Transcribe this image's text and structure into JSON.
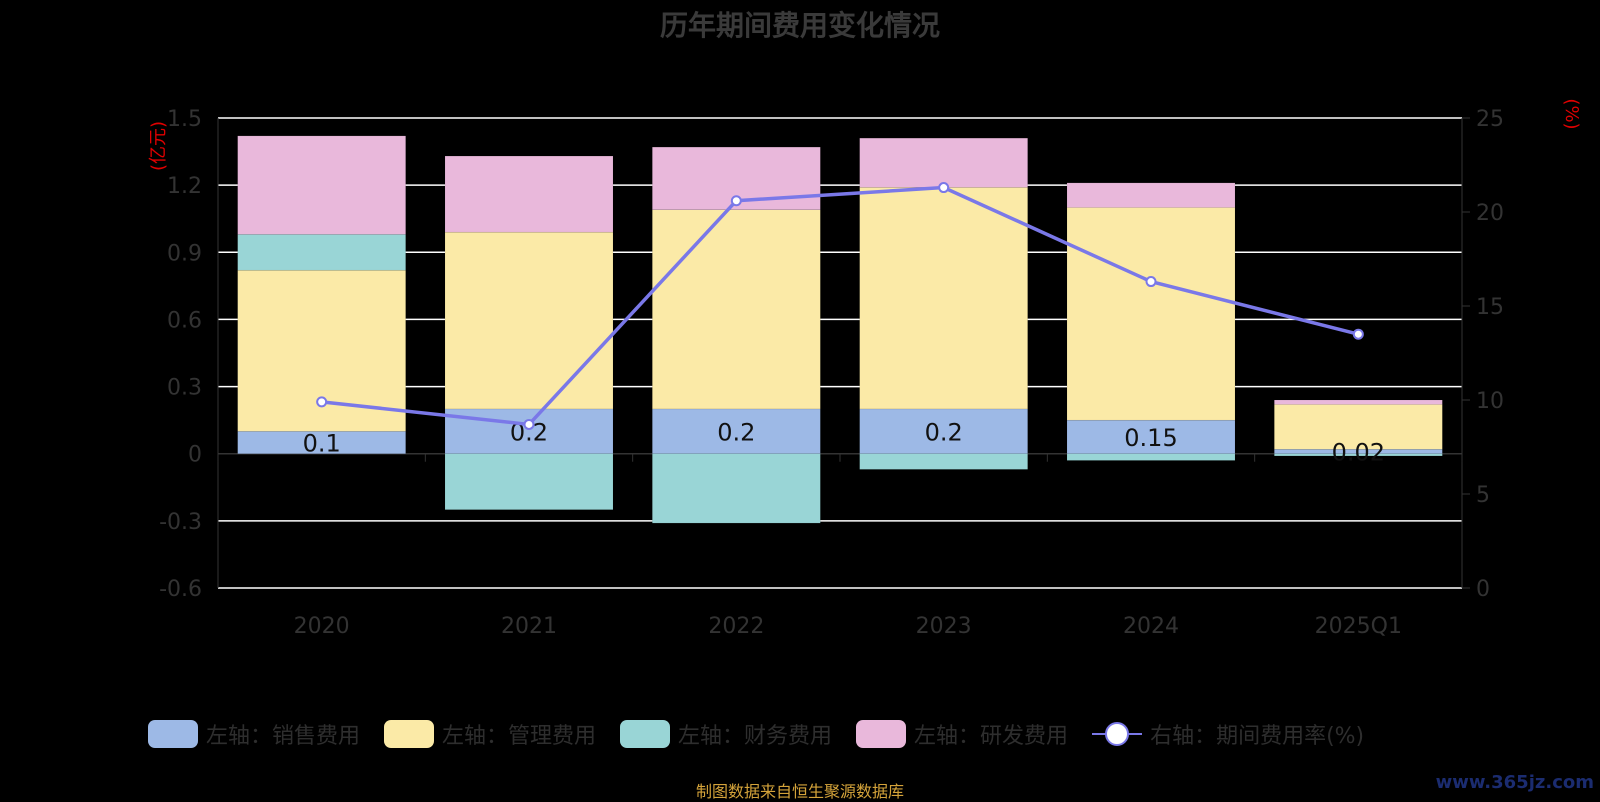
{
  "title": "历年期间费用变化情况",
  "source": "制图数据来自恒生聚源数据库",
  "watermark": "www.365jz.com",
  "legend": [
    {
      "label": "左轴：销售费用",
      "color": "#9db9e6"
    },
    {
      "label": "左轴：管理费用",
      "color": "#fbeaa7"
    },
    {
      "label": "左轴：财务费用",
      "color": "#99d5d6"
    },
    {
      "label": "左轴：研发费用",
      "color": "#e9b8db"
    },
    {
      "label": "右轴：期间费用率(%)",
      "color": "#7a78e8"
    }
  ],
  "chart_data": {
    "type": "bar",
    "stacked": true,
    "categories": [
      "2020",
      "2021",
      "2022",
      "2023",
      "2024",
      "2025Q1"
    ],
    "series": [
      {
        "name": "左轴：销售费用",
        "axis": "left",
        "color": "#9db9e6",
        "values": [
          0.1,
          0.2,
          0.2,
          0.2,
          0.15,
          0.02
        ]
      },
      {
        "name": "左轴：管理费用",
        "axis": "left",
        "color": "#fbeaa7",
        "values": [
          0.72,
          0.79,
          0.89,
          0.99,
          0.95,
          0.2
        ]
      },
      {
        "name": "左轴：财务费用",
        "axis": "left",
        "color": "#99d5d6",
        "values": [
          0.16,
          -0.25,
          -0.31,
          -0.07,
          -0.03,
          -0.01
        ]
      },
      {
        "name": "左轴：研发费用",
        "axis": "left",
        "color": "#e9b8db",
        "values": [
          0.44,
          0.34,
          0.28,
          0.22,
          0.11,
          0.02
        ]
      }
    ],
    "line_series": {
      "name": "右轴：期间费用率(%)",
      "axis": "right",
      "color": "#7a78e8",
      "values": [
        9.9,
        8.7,
        20.6,
        21.3,
        16.3,
        13.5
      ]
    },
    "bar_labels": [
      "0.1",
      "0.2",
      "0.2",
      "0.2",
      "0.15",
      "0.02"
    ],
    "left_axis": {
      "unit": "(亿元)",
      "min": -0.6,
      "max": 1.5,
      "ticks": [
        1.5,
        1.2,
        0.9,
        0.6,
        0.3,
        0,
        -0.3,
        -0.6
      ],
      "tick_labels": [
        "1.5",
        "1.2",
        "0.9",
        "0.6",
        "0.3",
        "0",
        "-0.3",
        "-0.6"
      ]
    },
    "right_axis": {
      "unit": "(%)",
      "min": 0,
      "max": 25,
      "ticks": [
        25,
        20,
        15,
        10,
        5,
        0
      ],
      "tick_labels": [
        "25",
        "20",
        "15",
        "10",
        "5",
        "0"
      ]
    },
    "grid": true,
    "legend_position": "bottom"
  }
}
